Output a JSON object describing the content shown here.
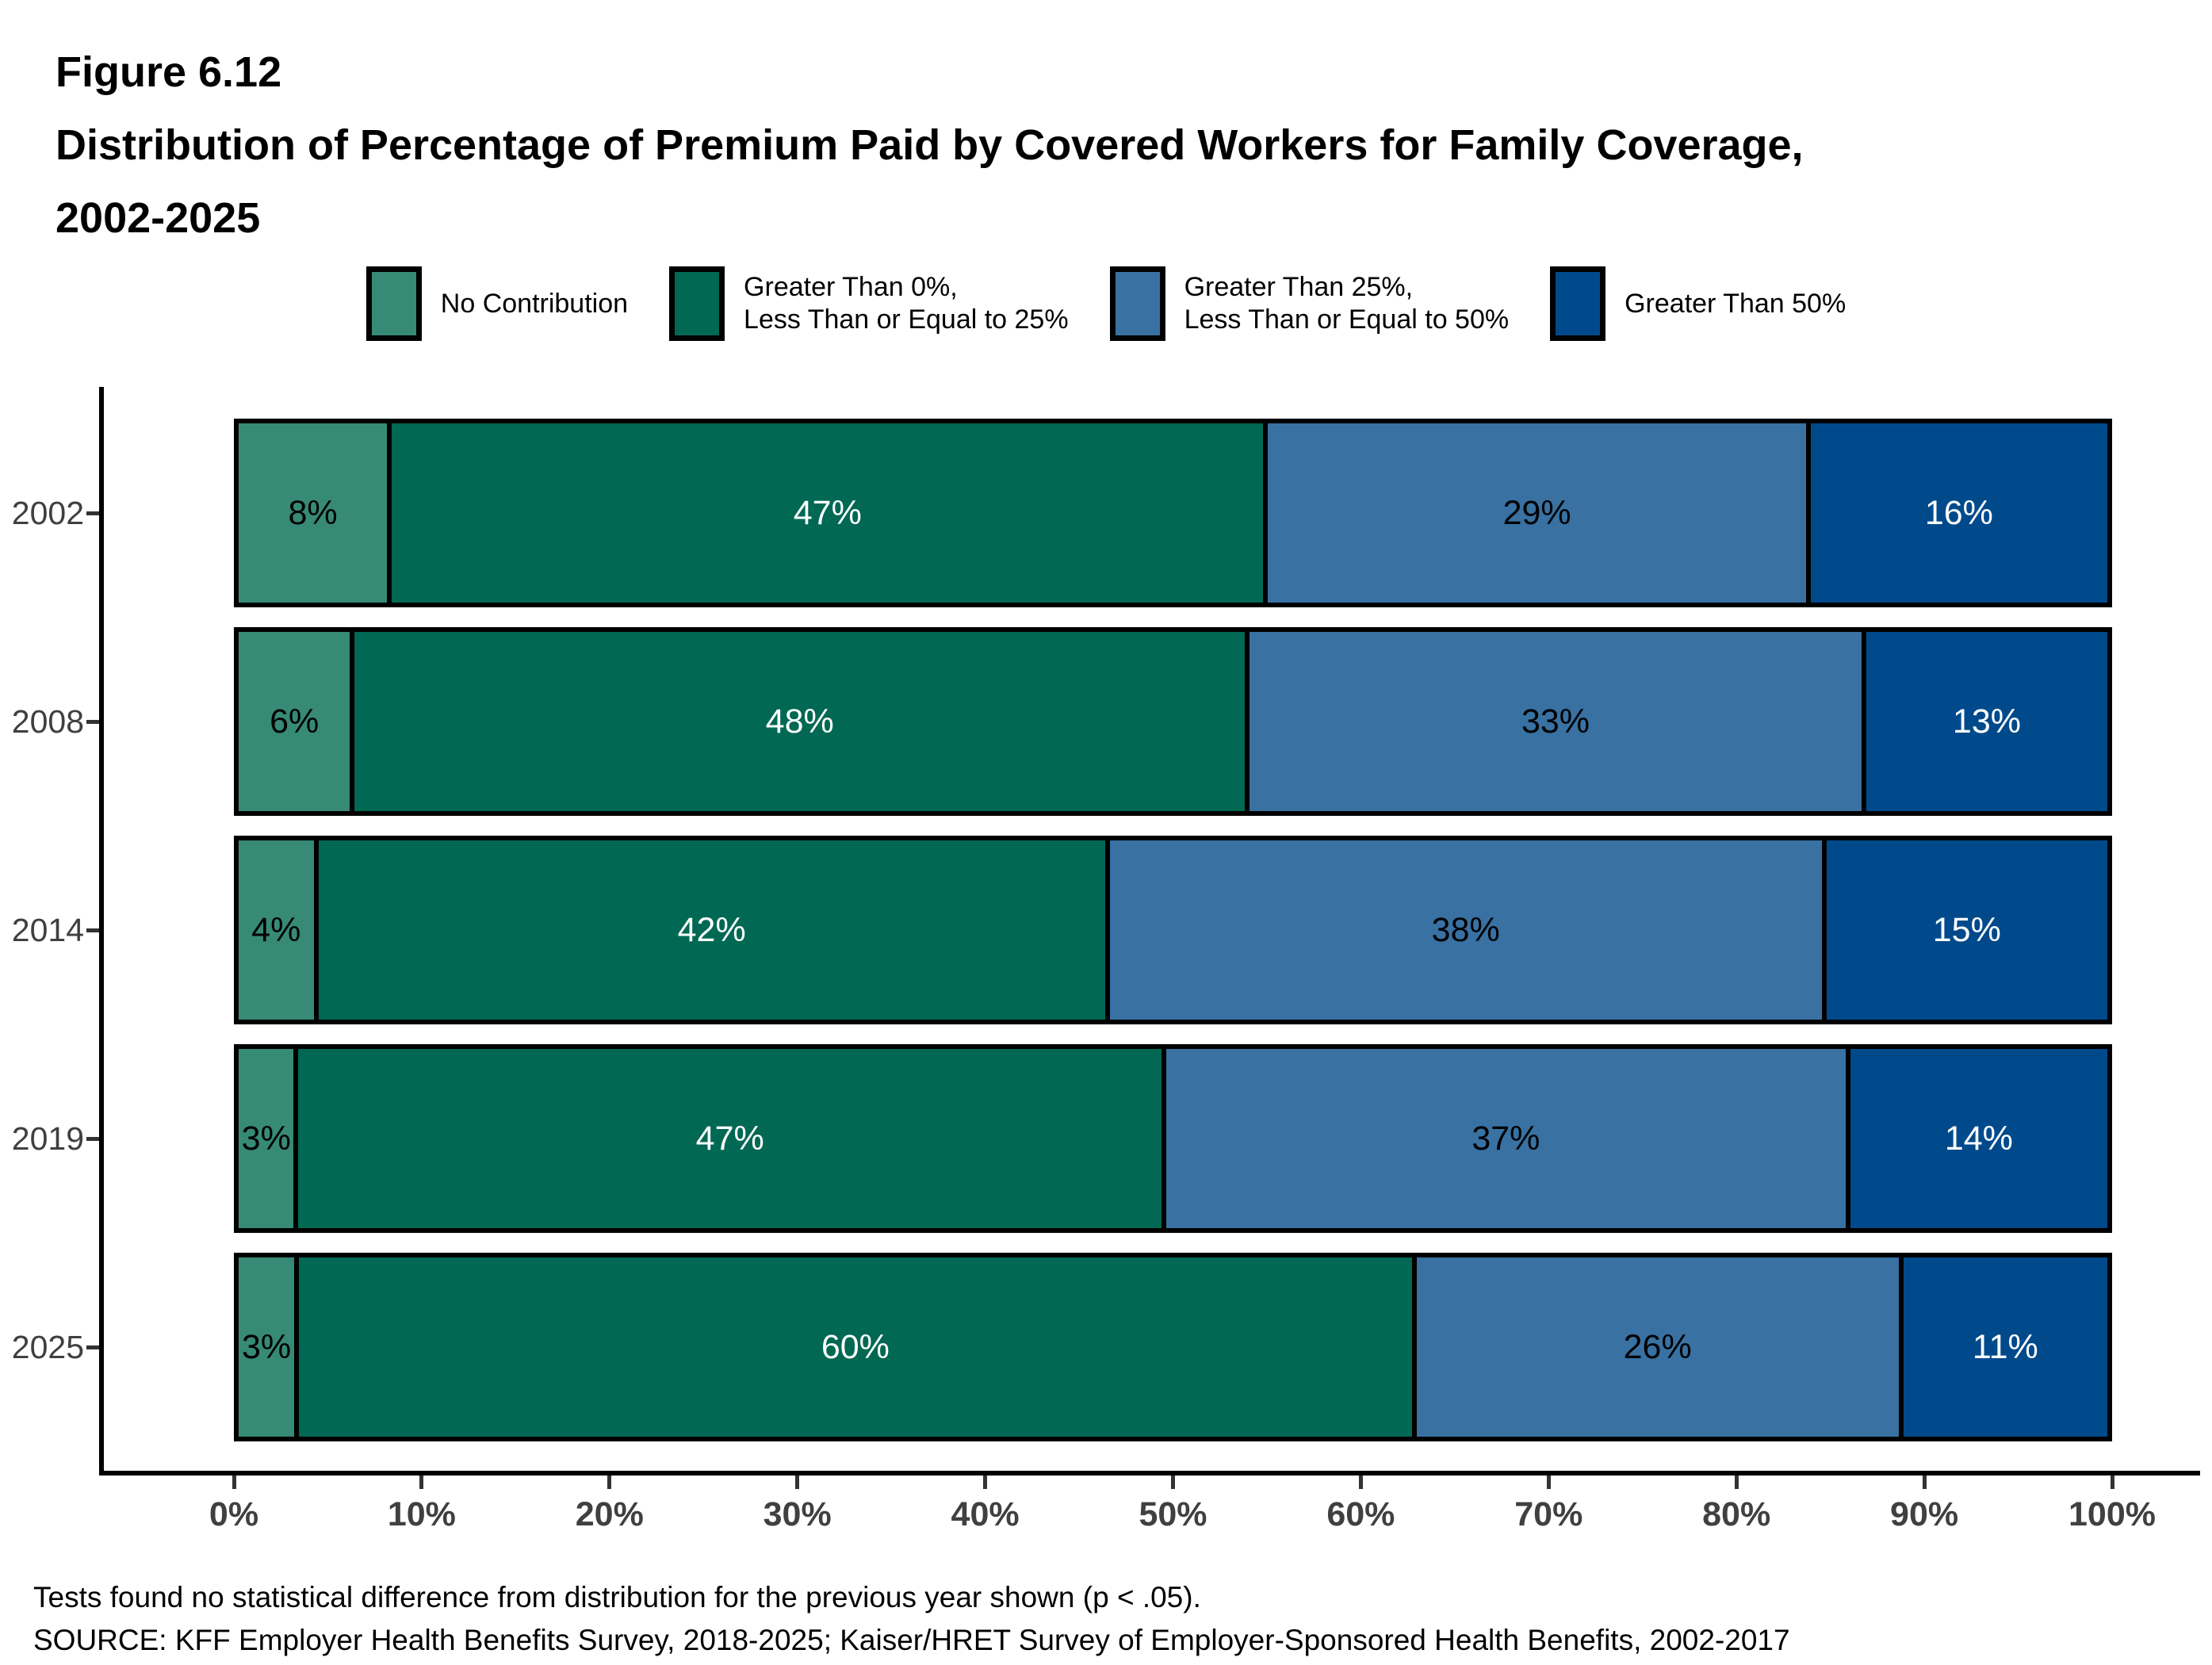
{
  "header": {
    "figure_label": "Figure 6.12",
    "title": "Distribution of Percentage of Premium Paid by Covered Workers for Family Coverage,",
    "title_years": "2002-2025"
  },
  "legend": {
    "items": [
      {
        "label": "No Contribution",
        "color": "#378A75"
      },
      {
        "label": "Greater Than 0%,\nLess Than or Equal to 25%",
        "color": "#006853"
      },
      {
        "label": "Greater Than 25%,\nLess Than or Equal to 50%",
        "color": "#3871A2"
      },
      {
        "label": "Greater Than 50%",
        "color": "#004A8C"
      }
    ]
  },
  "chart_data": {
    "type": "bar",
    "orientation": "horizontal",
    "stacked": true,
    "title": "Distribution of Percentage of Premium Paid by Covered Workers for Family Coverage, 2002-2025",
    "categories": [
      "2002",
      "2008",
      "2014",
      "2019",
      "2025"
    ],
    "series": [
      {
        "name": "No Contribution",
        "color": "#378A75",
        "label_color": "#000000",
        "values": [
          8,
          6,
          4,
          3,
          3
        ]
      },
      {
        "name": "Greater Than 0%, Less Than or Equal to 25%",
        "color": "#006853",
        "label_color": "#FFFFFF",
        "values": [
          47,
          48,
          42,
          47,
          60
        ]
      },
      {
        "name": "Greater Than 25%, Less Than or Equal to 50%",
        "color": "#3871A2",
        "label_color": "#000000",
        "values": [
          29,
          33,
          38,
          37,
          26
        ]
      },
      {
        "name": "Greater Than 50%",
        "color": "#004A8C",
        "label_color": "#FFFFFF",
        "values": [
          16,
          13,
          15,
          14,
          11
        ]
      }
    ],
    "value_suffix": "%",
    "xlim": [
      0,
      100
    ],
    "x_tick_labels": [
      "0%",
      "10%",
      "20%",
      "30%",
      "40%",
      "50%",
      "60%",
      "70%",
      "80%",
      "90%",
      "100%"
    ],
    "grid": false,
    "legend_position": "top",
    "bar_outline_color": "#000000",
    "axis_color": "#000000",
    "tick_label_color": "#404040"
  },
  "footnotes": {
    "note": "Tests found no statistical difference from distribution for the previous year shown (p < .05).",
    "source": "SOURCE: KFF Employer Health Benefits Survey, 2018-2025; Kaiser/HRET Survey of Employer-Sponsored Health Benefits, 2002-2017"
  }
}
